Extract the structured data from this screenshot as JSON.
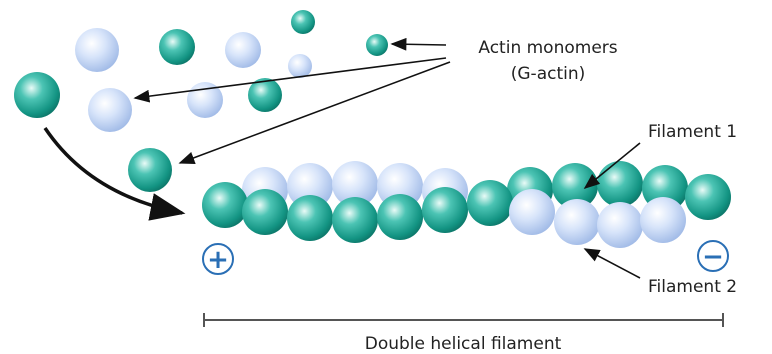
{
  "labels": {
    "monomers": "Actin monomers",
    "g_actin": "(G-actin)",
    "filament_1": "Filament 1",
    "filament_2": "Filament 2",
    "plus_end": "+",
    "minus_end": "−",
    "length": "Double helical filament"
  }
}
